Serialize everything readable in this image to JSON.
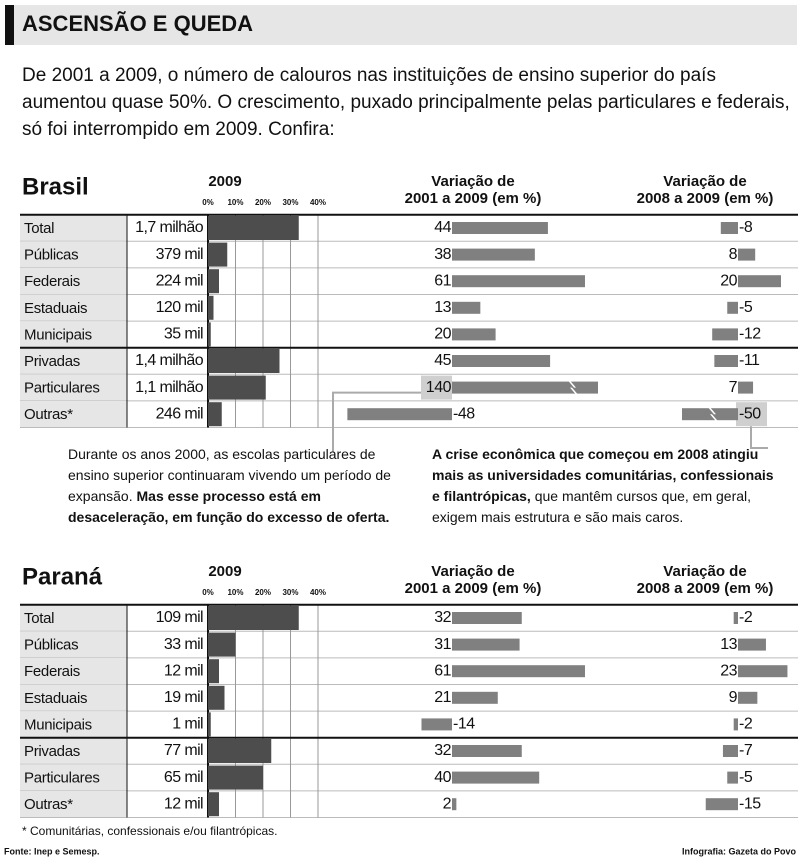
{
  "header": {
    "title": "ASCENSÃO E QUEDA",
    "intro": "De 2001 a 2009, o número de calouros nas instituições de ensino superior do país aumentou quase 50%. O crescimento, puxado principalmente pelas particulares e federais, só foi interrompido em 2009. Confira:"
  },
  "chart_data": [
    {
      "type": "bar",
      "title": "Brasil",
      "color": "#808080",
      "categories": [
        "Total",
        "Públicas",
        "Federais",
        "Estaduais",
        "Municipais",
        "Privadas",
        "Particulares",
        "Outras*"
      ],
      "totals": [
        "1,7 milhão",
        "379 mil",
        "224 mil",
        "120 mil",
        "35 mil",
        "1,4 milhão",
        "1,1 milhão",
        "246 mil"
      ],
      "share_title": "2009",
      "xlim": [
        0,
        40
      ],
      "xticks": [
        {
          "value": 0,
          "label": "0%"
        },
        {
          "value": 10,
          "label": "10%"
        },
        {
          "value": 20,
          "label": "20%"
        },
        {
          "value": 30,
          "label": "30%"
        },
        {
          "value": 40,
          "label": "40%"
        }
      ],
      "share_2009": [
        33,
        7,
        4,
        2,
        1,
        26,
        21,
        5
      ],
      "change_2001_2009": {
        "title": [
          "Variação de",
          "2001 a 2009 (em %)"
        ],
        "values": [
          44,
          38,
          61,
          13,
          20,
          45,
          140,
          -48
        ]
      },
      "change_2008_2009": {
        "title": [
          "Variação de",
          "2008 a 2009 (em %)"
        ],
        "values": [
          -8,
          8,
          20,
          -5,
          -12,
          -11,
          7,
          -50
        ]
      }
    },
    {
      "type": "bar",
      "title": "Paraná",
      "color": "#808080",
      "categories": [
        "Total",
        "Públicas",
        "Federais",
        "Estaduais",
        "Municipais",
        "Privadas",
        "Particulares",
        "Outras*"
      ],
      "totals": [
        "109 mil",
        "33 mil",
        "12 mil",
        "19 mil",
        "1 mil",
        "77 mil",
        "65 mil",
        "12 mil"
      ],
      "share_title": "2009",
      "xlim": [
        0,
        40
      ],
      "xticks": [
        {
          "value": 0,
          "label": "0%"
        },
        {
          "value": 10,
          "label": "10%"
        },
        {
          "value": 20,
          "label": "20%"
        },
        {
          "value": 30,
          "label": "30%"
        },
        {
          "value": 40,
          "label": "40%"
        }
      ],
      "share_2009": [
        33,
        10,
        4,
        6,
        1,
        23,
        20,
        4
      ],
      "change_2001_2009": {
        "title": [
          "Variação de",
          "2001 a 2009 (em %)"
        ],
        "values": [
          32,
          31,
          61,
          21,
          -14,
          32,
          40,
          2
        ]
      },
      "change_2008_2009": {
        "title": [
          "Variação de",
          "2008 a 2009 (em %)"
        ],
        "values": [
          -2,
          13,
          23,
          9,
          -2,
          -7,
          -5,
          -15
        ]
      }
    }
  ],
  "annotations": [
    {
      "parts": [
        "Durante os anos 2000, as escolas particulares de ensino superior continuaram vivendo um período de expansão.",
        " Mas esse processo está em desaceleração, em função do excesso de oferta."
      ]
    },
    {
      "parts": [
        "A crise econômica que começou em 2008 atingiu mais as universidades comunitárias, confessionais e filantrópicas,",
        " que mantêm cursos que, em geral, exigem mais estrutura e são mais caros."
      ]
    }
  ],
  "footnote": "* Comunitárias, confessionais e/ou filantrópicas.",
  "source": "Fonte: Inep e Semesp.",
  "credit": "Infografia: Gazeta do Povo"
}
